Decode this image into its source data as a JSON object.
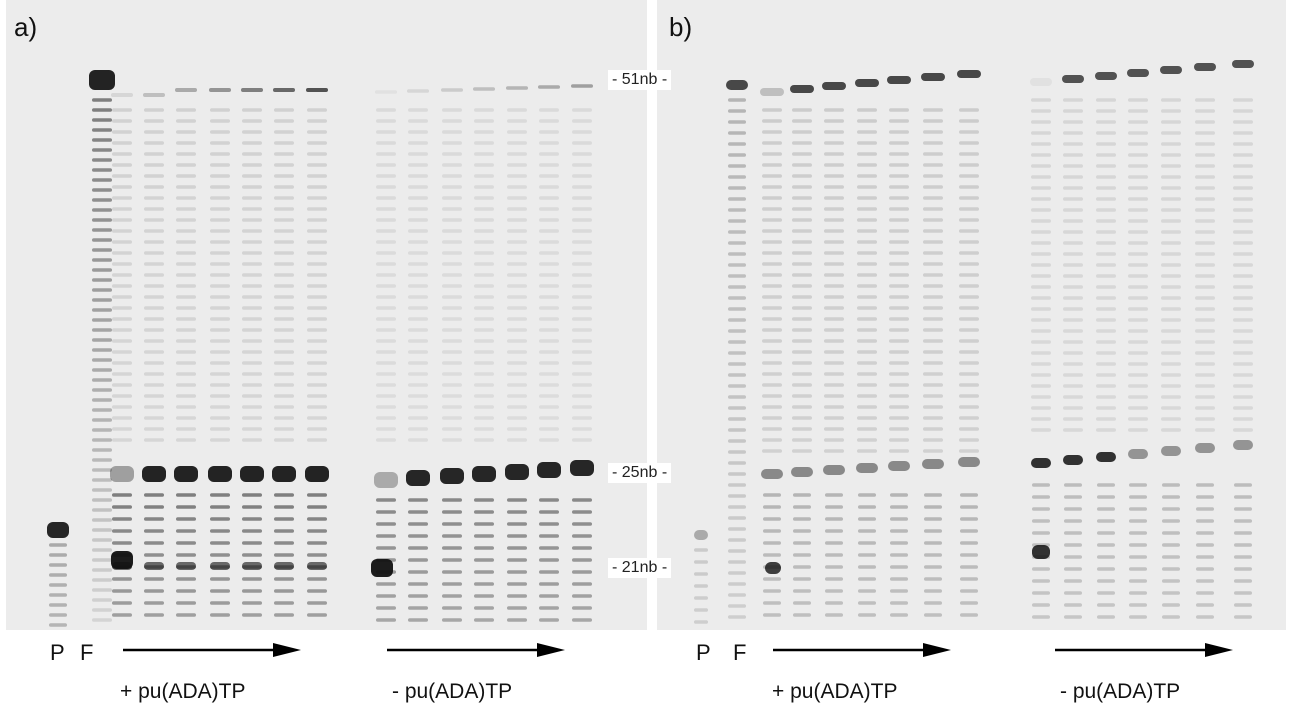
{
  "panels": [
    {
      "label": "a)",
      "lane_labels": [
        "P",
        "F"
      ],
      "conditions": [
        "+ pu(ADA)TP",
        "- pu(ADA)TP"
      ]
    },
    {
      "label": "b)",
      "lane_labels": [
        "P",
        "F"
      ],
      "conditions": [
        "+ pu(ADA)TP",
        "- pu(ADA)TP"
      ]
    }
  ],
  "markers": [
    "- 51nb -",
    "- 25nb -",
    "- 21nb -"
  ],
  "colors": {
    "gel_background": "#ececec",
    "band": "#111111"
  }
}
